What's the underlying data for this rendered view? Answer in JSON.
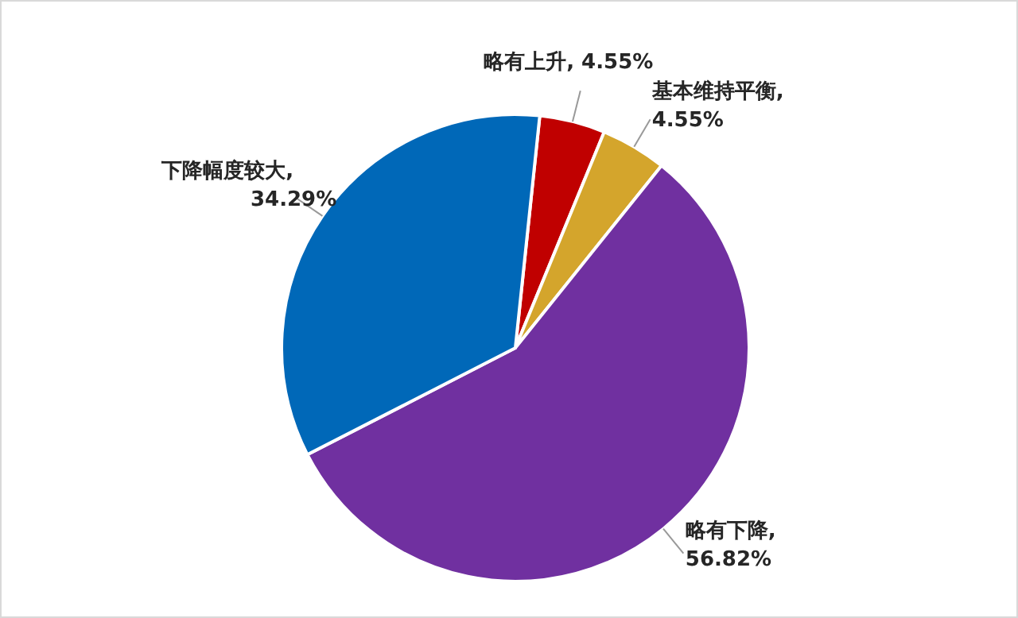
{
  "chart_data": {
    "type": "pie",
    "categories": [
      "略有上升",
      "基本维持平衡",
      "略有下降",
      "下降幅度较大"
    ],
    "values": [
      4.55,
      4.55,
      56.82,
      34.29
    ],
    "value_labels": [
      ", 4.55%",
      ",\n4.55%",
      ",\n56.82%",
      ",\n34.29%"
    ],
    "colors": [
      "#c00000",
      "#d4a52c",
      "#7030a0",
      "#0068b8"
    ],
    "legend": false
  }
}
